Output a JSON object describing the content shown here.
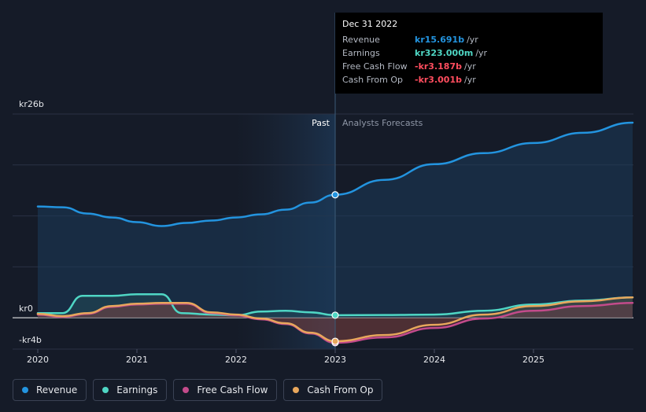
{
  "chart_data": {
    "type": "area",
    "y_axis": {
      "top_label": "kr26b",
      "zero_label": "kr0",
      "bottom_label": "-kr4b",
      "ylim": [
        -4,
        26
      ],
      "unit": "b"
    },
    "x_axis": {
      "ticks": [
        "2020",
        "2021",
        "2022",
        "2023",
        "2024",
        "2025"
      ],
      "xlim": [
        2019.8,
        2026.0
      ]
    },
    "past_label": "Past",
    "forecast_label": "Analysts Forecasts",
    "divider_x": 2023.0,
    "series": [
      {
        "name": "Revenue",
        "color": "#2394df",
        "x": [
          2020.0,
          2020.25,
          2020.5,
          2020.75,
          2021.0,
          2021.25,
          2021.5,
          2021.75,
          2022.0,
          2022.25,
          2022.5,
          2022.75,
          2023.0,
          2023.5,
          2024.0,
          2024.5,
          2025.0,
          2025.5,
          2026.0
        ],
        "values": [
          14.2,
          14.1,
          13.3,
          12.8,
          12.2,
          11.7,
          12.1,
          12.4,
          12.8,
          13.2,
          13.8,
          14.7,
          15.691,
          17.6,
          19.6,
          21.0,
          22.3,
          23.6,
          24.9
        ]
      },
      {
        "name": "Earnings",
        "color": "#4fd6c4",
        "x": [
          2020.0,
          2020.25,
          2020.45,
          2020.75,
          2021.0,
          2021.25,
          2021.45,
          2021.75,
          2022.0,
          2022.25,
          2022.5,
          2022.75,
          2023.0,
          2023.5,
          2024.0,
          2024.5,
          2025.0,
          2025.5,
          2026.0
        ],
        "values": [
          0.6,
          0.6,
          2.8,
          2.8,
          3.0,
          3.0,
          0.6,
          0.4,
          0.3,
          0.8,
          0.9,
          0.7,
          0.323,
          0.35,
          0.4,
          0.9,
          1.7,
          2.2,
          2.6
        ]
      },
      {
        "name": "Free Cash Flow",
        "color": "#c34b8b",
        "x": [
          2020.0,
          2020.25,
          2020.5,
          2020.75,
          2021.0,
          2021.25,
          2021.5,
          2021.75,
          2022.0,
          2022.25,
          2022.5,
          2022.75,
          2023.0,
          2023.5,
          2024.0,
          2024.5,
          2025.0,
          2025.5,
          2026.0
        ],
        "values": [
          0.4,
          0.1,
          0.5,
          1.4,
          1.7,
          1.8,
          1.8,
          0.6,
          0.3,
          -0.2,
          -0.8,
          -2.0,
          -3.187,
          -2.5,
          -1.3,
          -0.1,
          0.9,
          1.5,
          1.9
        ]
      },
      {
        "name": "Cash From Op",
        "color": "#e8a75c",
        "x": [
          2020.0,
          2020.25,
          2020.5,
          2020.75,
          2021.0,
          2021.25,
          2021.5,
          2021.75,
          2022.0,
          2022.25,
          2022.5,
          2022.75,
          2023.0,
          2023.5,
          2024.0,
          2024.5,
          2025.0,
          2025.5,
          2026.0
        ],
        "values": [
          0.5,
          0.2,
          0.6,
          1.5,
          1.8,
          1.9,
          1.9,
          0.7,
          0.4,
          -0.1,
          -0.7,
          -1.9,
          -3.001,
          -2.2,
          -0.9,
          0.4,
          1.5,
          2.1,
          2.6
        ]
      }
    ],
    "highlight_index": 12
  },
  "tooltip": {
    "date": "Dec 31 2022",
    "rows": [
      {
        "label": "Revenue",
        "value": "kr15.691b",
        "unit": "/yr",
        "color": "#2394df"
      },
      {
        "label": "Earnings",
        "value": "kr323.000m",
        "unit": "/yr",
        "color": "#4fd6c4"
      },
      {
        "label": "Free Cash Flow",
        "value": "-kr3.187b",
        "unit": "/yr",
        "color": "#ff4d5e"
      },
      {
        "label": "Cash From Op",
        "value": "-kr3.001b",
        "unit": "/yr",
        "color": "#ff4d5e"
      }
    ]
  },
  "legend": [
    {
      "label": "Revenue",
      "color": "#2394df"
    },
    {
      "label": "Earnings",
      "color": "#4fd6c4"
    },
    {
      "label": "Free Cash Flow",
      "color": "#c34b8b"
    },
    {
      "label": "Cash From Op",
      "color": "#e8a75c"
    }
  ]
}
